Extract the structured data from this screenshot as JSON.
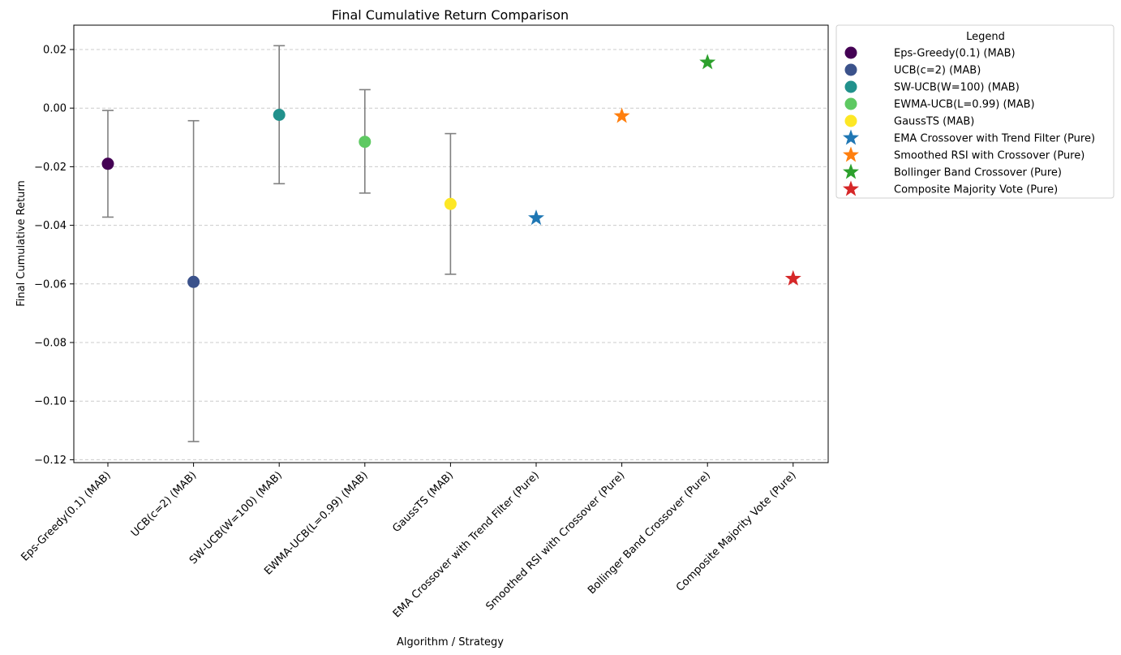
{
  "chart_data": {
    "type": "scatter",
    "title": "Final Cumulative Return Comparison",
    "xlabel": "Algorithm / Strategy",
    "ylabel": "Final Cumulative Return",
    "ylim": [
      -0.1205,
      0.0285
    ],
    "yticks": [
      0.02,
      0.0,
      -0.02,
      -0.04,
      -0.06,
      -0.08,
      -0.1,
      -0.12
    ],
    "ytick_labels": [
      "0.02",
      "0.00",
      "−0.02",
      "−0.04",
      "−0.06",
      "−0.08",
      "−0.10",
      "−0.12"
    ],
    "grid": "y-dashed",
    "legend_placement": "outside-top-right",
    "categories": [
      "Eps-Greedy(0.1) (MAB)",
      "UCB(c=2) (MAB)",
      "SW-UCB(W=100) (MAB)",
      "EWMA-UCB(L=0.99) (MAB)",
      "GaussTS (MAB)",
      "EMA Crossover with Trend Filter (Pure)",
      "Smoothed RSI with Crossover (Pure)",
      "Bollinger Band Crossover (Pure)",
      "Composite Majority Vote (Pure)"
    ],
    "series": [
      {
        "name": "Eps-Greedy(0.1) (MAB)",
        "marker": "circle",
        "color": "#440154",
        "value": -0.019,
        "err_low": -0.0372,
        "err_high": -0.0008
      },
      {
        "name": "UCB(c=2) (MAB)",
        "marker": "circle",
        "color": "#3b528b",
        "value": -0.0593,
        "err_low": -0.1138,
        "err_high": -0.0043
      },
      {
        "name": "SW-UCB(W=100) (MAB)",
        "marker": "circle",
        "color": "#21918c",
        "value": -0.0023,
        "err_low": -0.0258,
        "err_high": 0.0213
      },
      {
        "name": "EWMA-UCB(L=0.99) (MAB)",
        "marker": "circle",
        "color": "#5ec962",
        "value": -0.0115,
        "err_low": -0.029,
        "err_high": 0.0063
      },
      {
        "name": "GaussTS (MAB)",
        "marker": "circle",
        "color": "#fde725",
        "value": -0.0327,
        "err_low": -0.0567,
        "err_high": -0.0087
      },
      {
        "name": "EMA Crossover with Trend Filter (Pure)",
        "marker": "star",
        "color": "#1f77b4",
        "value": -0.0375
      },
      {
        "name": "Smoothed RSI with Crossover (Pure)",
        "marker": "star",
        "color": "#ff7f0e",
        "value": -0.0027
      },
      {
        "name": "Bollinger Band Crossover (Pure)",
        "marker": "star",
        "color": "#2ca02c",
        "value": 0.0156
      },
      {
        "name": "Composite Majority Vote (Pure)",
        "marker": "star",
        "color": "#d62728",
        "value": -0.0582
      }
    ],
    "legend_title": "Legend"
  },
  "colors": {
    "errorbar": "#808080",
    "grid": "#cccccc"
  }
}
